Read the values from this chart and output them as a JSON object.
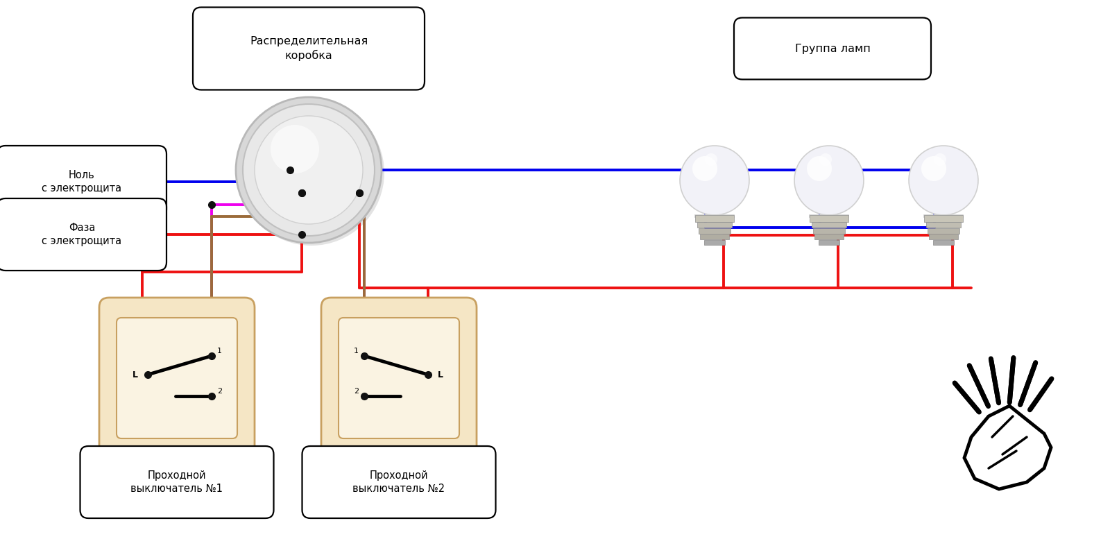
{
  "bg_color": "#ffffff",
  "colors": {
    "blue": "#0000ee",
    "red": "#ee1111",
    "magenta": "#ee00ee",
    "brown": "#9B6B3A",
    "black": "#111111",
    "white": "#ffffff",
    "switch_bg": "#f5e6c5",
    "switch_border": "#c8a060",
    "jbox_outer": "#e8e8e8",
    "jbox_mid": "#f2f2f2",
    "jbox_shadow": "#cccccc",
    "dot_black": "#111111",
    "bulb_glass": "#f8f8ff",
    "bulb_base": "#b8b4a8",
    "bulb_screw": "#c0bdb0"
  },
  "labels": {
    "distrib_box": "Распределительная\nкоробка",
    "null": "Ноль\nс электрощита",
    "phase": "Фаза\nс электрощита",
    "lamps": "Группа ламп",
    "sw1": "Проходной\nвыключатель №1",
    "sw2": "Проходной\nвыключатель №2"
  },
  "lw": 2.8,
  "lw_thin": 1.5,
  "dot_ms": 8
}
